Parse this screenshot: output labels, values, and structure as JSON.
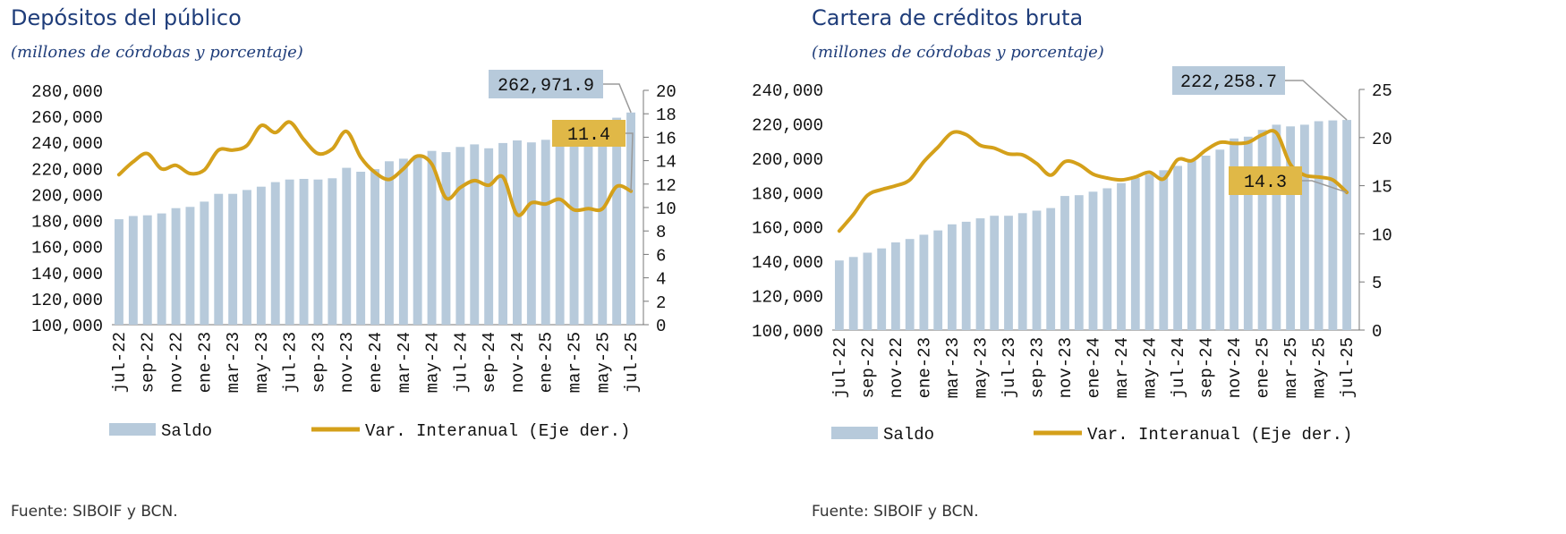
{
  "colors": {
    "bar": "#b7cadb",
    "line": "#d4a01a",
    "callout_bar": "#b7cadb",
    "callout_line": "#e0b847",
    "title": "#1f3d7a"
  },
  "chart_data": [
    {
      "type": "bar",
      "title": "Depósitos del público",
      "subtitle": "(millones de córdobas y porcentaje)",
      "source": "Fuente: SIBOIF y BCN.",
      "x_tick_labels": [
        "jul-22",
        "sep-22",
        "nov-22",
        "ene-23",
        "mar-23",
        "may-23",
        "jul-23",
        "sep-23",
        "nov-23",
        "ene-24",
        "mar-24",
        "may-24",
        "jul-24",
        "sep-24",
        "nov-24",
        "ene-25",
        "mar-25",
        "may-25",
        "jul-25"
      ],
      "y_left_ticks": [
        "100,000",
        "120,000",
        "140,000",
        "160,000",
        "180,000",
        "200,000",
        "220,000",
        "240,000",
        "260,000",
        "280,000"
      ],
      "y_right_ticks": [
        "0",
        "2",
        "4",
        "6",
        "8",
        "10",
        "12",
        "14",
        "16",
        "18",
        "20"
      ],
      "y_left_range": [
        100000,
        280000
      ],
      "y_right_range": [
        0,
        20
      ],
      "legend": {
        "bar_label": "Saldo",
        "line_label": "Var. Interanual (Eje der.)",
        "placement": "bottom"
      },
      "series": [
        {
          "name": "Saldo",
          "axis": "left",
          "values": [
            181000,
            183500,
            184000,
            185500,
            189500,
            190500,
            194500,
            200500,
            200500,
            203500,
            206000,
            209500,
            211500,
            212000,
            211500,
            212500,
            220500,
            217500,
            219500,
            225500,
            227500,
            230000,
            233500,
            232500,
            236500,
            238500,
            235500,
            239500,
            241500,
            240000,
            242000,
            240500,
            243000,
            250000,
            254000,
            259000,
            262971.9
          ]
        },
        {
          "name": "Var. Interanual (Eje der.)",
          "axis": "right",
          "values": [
            12.8,
            13.9,
            14.6,
            13.3,
            13.6,
            12.9,
            13.2,
            14.9,
            14.9,
            15.3,
            17.0,
            16.4,
            17.3,
            15.8,
            14.6,
            15.0,
            16.5,
            14.3,
            13.0,
            12.4,
            13.3,
            14.4,
            13.7,
            10.8,
            11.7,
            12.3,
            11.9,
            12.6,
            9.4,
            10.4,
            10.3,
            10.7,
            9.8,
            9.9,
            9.9,
            11.8,
            11.4
          ]
        }
      ],
      "callouts": [
        {
          "label": "262,971.9",
          "series": "Saldo"
        },
        {
          "label": "11.4",
          "series": "Var. Interanual (Eje der.)"
        }
      ],
      "grid": false
    },
    {
      "type": "bar",
      "title": "Cartera de créditos bruta",
      "subtitle": "(millones de córdobas y porcentaje)",
      "source": "Fuente: SIBOIF y BCN.",
      "x_tick_labels": [
        "jul-22",
        "sep-22",
        "nov-22",
        "ene-23",
        "mar-23",
        "may-23",
        "jul-23",
        "sep-23",
        "nov-23",
        "ene-24",
        "mar-24",
        "may-24",
        "jul-24",
        "sep-24",
        "nov-24",
        "ene-25",
        "mar-25",
        "may-25",
        "jul-25"
      ],
      "y_left_ticks": [
        "100,000",
        "120,000",
        "140,000",
        "160,000",
        "180,000",
        "200,000",
        "220,000",
        "240,000"
      ],
      "y_right_ticks": [
        "0",
        "5",
        "10",
        "15",
        "20",
        "25"
      ],
      "y_left_range": [
        100000,
        240000
      ],
      "y_right_range": [
        0,
        25
      ],
      "legend": {
        "bar_label": "Saldo",
        "line_label": "Var. Interanual (Eje der.)",
        "placement": "bottom"
      },
      "series": [
        {
          "name": "Saldo",
          "axis": "left",
          "values": [
            140500,
            142500,
            145000,
            147500,
            151000,
            153000,
            155500,
            158000,
            161500,
            163000,
            165000,
            166500,
            166500,
            168000,
            169500,
            171000,
            178000,
            178500,
            180500,
            182500,
            185500,
            188500,
            190500,
            193000,
            195500,
            198500,
            201500,
            205000,
            211500,
            212500,
            216500,
            219500,
            218500,
            219500,
            221500,
            222000,
            222258.7
          ]
        },
        {
          "name": "Var. Interanual (Eje der.)",
          "axis": "right",
          "values": [
            10.3,
            12.0,
            14.0,
            14.6,
            15.0,
            15.6,
            17.5,
            19.0,
            20.5,
            20.3,
            19.2,
            18.9,
            18.3,
            18.2,
            17.3,
            16.1,
            17.5,
            17.2,
            16.2,
            15.8,
            15.6,
            15.9,
            16.4,
            15.7,
            17.7,
            17.6,
            18.7,
            19.5,
            19.4,
            19.5,
            20.3,
            20.5,
            17.2,
            16.1,
            15.9,
            15.6,
            14.3
          ]
        }
      ],
      "callouts": [
        {
          "label": "222,258.7",
          "series": "Saldo"
        },
        {
          "label": "14.3",
          "series": "Var. Interanual (Eje der.)"
        }
      ],
      "grid": false
    }
  ]
}
